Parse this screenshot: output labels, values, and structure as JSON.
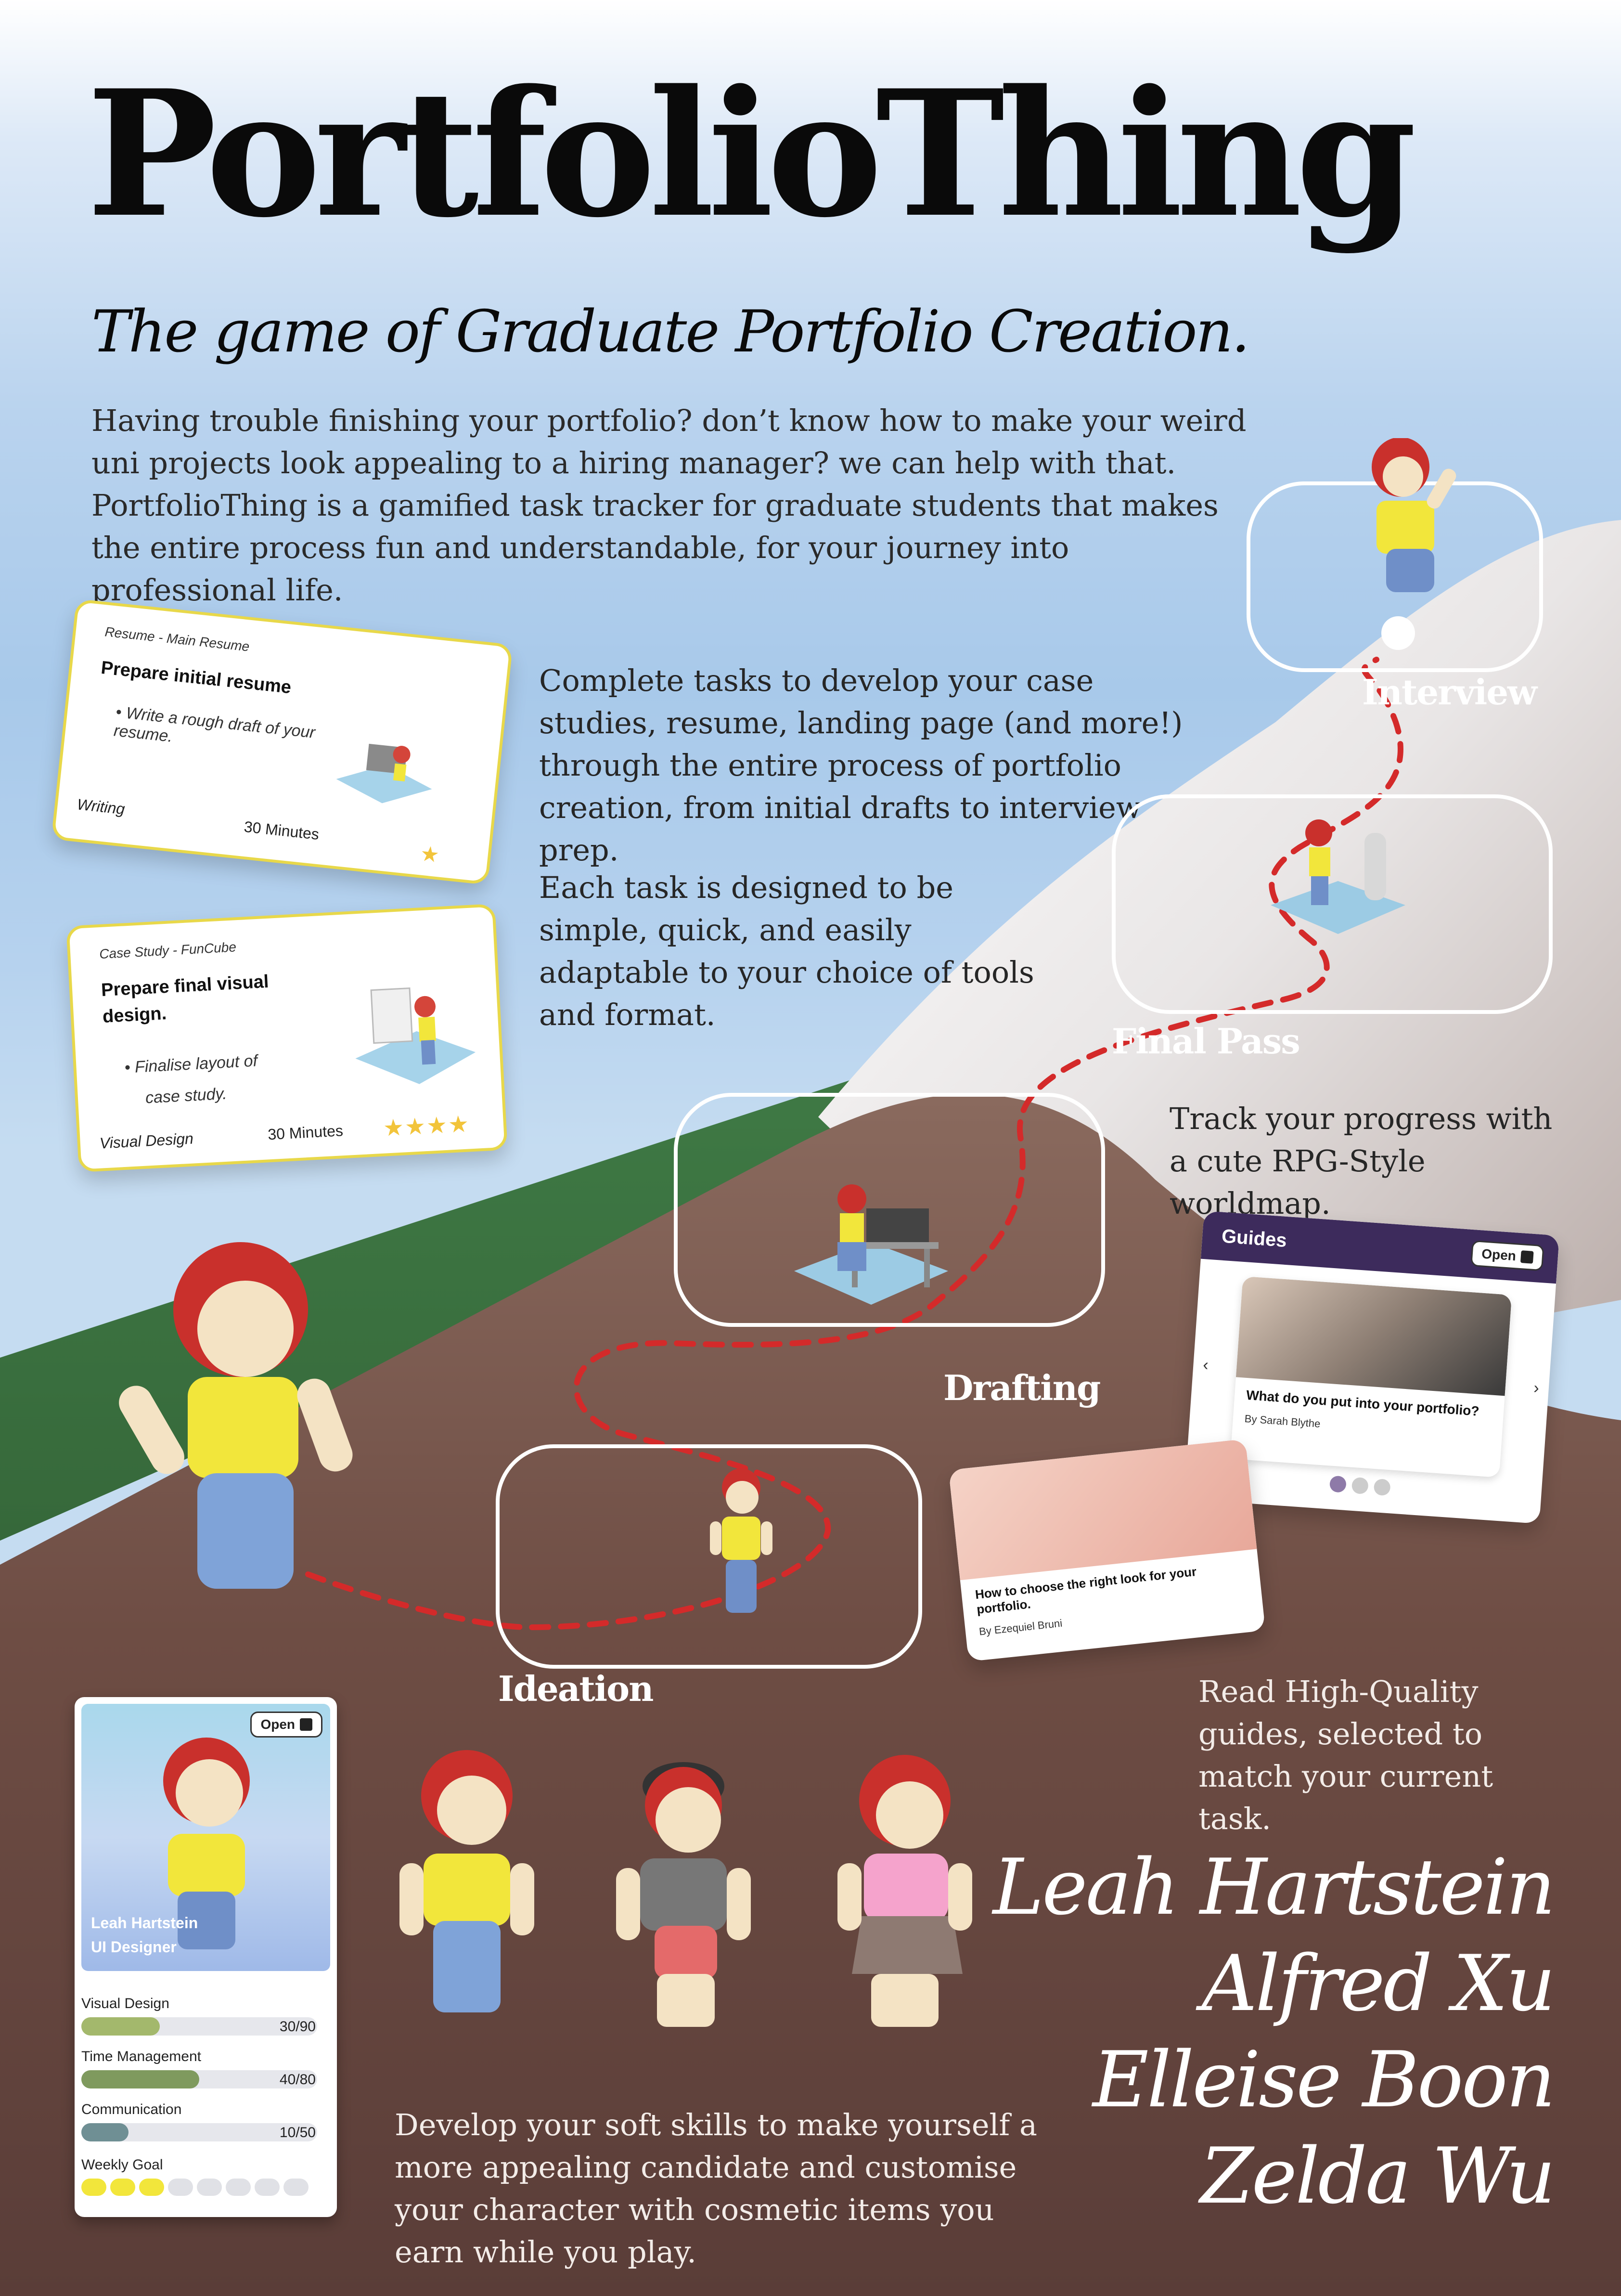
{
  "header": {
    "title": "PortfolioThing",
    "subtitle": "The game of Graduate Portfolio Creation."
  },
  "intro": "Having trouble finishing your portfolio? don’t know how to make your weird uni projects look appealing to a hiring manager? we can help with that. PortfolioThing is a gamified task tracker for graduate students that makes the entire process fun and understandable, for your journey into professional life.",
  "tasks_text": {
    "p1": "Complete tasks to develop your case studies, resume, landing page (and more!) through the entire process of portfolio creation, from initial drafts to interview prep.",
    "p2": "Each task is designed to be simple, quick, and easily adaptable to your choice of tools and format."
  },
  "task_cards": [
    {
      "category": "Resume - Main Resume",
      "title": "Prepare initial resume",
      "bullet": "Write a rough draft of your resume.",
      "skill": "Writing",
      "duration": "30 Minutes",
      "stars": 1
    },
    {
      "category": "Case Study - FunCube",
      "title_line1": "Prepare final visual",
      "title_line2": "design.",
      "bullet_line1": "Finalise layout of",
      "bullet_line2": "case study.",
      "skill": "Visual Design",
      "duration": "30 Minutes",
      "stars": 4
    }
  ],
  "map": {
    "stages": [
      "Interview",
      "Final Pass",
      "Drafting",
      "Ideation"
    ],
    "caption": "Track your progress with a cute RPG-Style worldmap."
  },
  "guides_panel": {
    "title": "Guides",
    "open_label": "Open",
    "article_title": "What do you put into your portfolio?",
    "article_author": "By Sarah Blythe",
    "prev_icon": "chevron-left-icon",
    "next_icon": "chevron-right-icon"
  },
  "guide_card": {
    "title": "How to choose the right look for your portfolio.",
    "author": "By Ezequiel Bruni"
  },
  "guides_caption": "Read High-Quality guides, selected to match your current task.",
  "profile": {
    "open_label": "Open",
    "name": "Leah Hartstein",
    "role": "UI Designer",
    "skills": [
      {
        "label": "Visual Design",
        "value": "30/90",
        "fraction": 0.333,
        "color": "#a3b86c"
      },
      {
        "label": "Time Management",
        "value": "40/80",
        "fraction": 0.5,
        "color": "#7f9a5e"
      },
      {
        "label": "Communication",
        "value": "10/50",
        "fraction": 0.2,
        "color": "#6f8f94"
      }
    ],
    "weekly_goal_label": "Weekly Goal",
    "weekly_goal_done": 3,
    "weekly_goal_total": 8
  },
  "skills_caption": "Develop your soft skills to make yourself a more appealing candidate and customise your character with cosmetic items you earn while you play.",
  "team": [
    "Leah Hartstein",
    "Alfred Xu",
    "Elleise Boon",
    "Zelda Wu"
  ],
  "colors": {
    "accent_yellow": "#f2e63b",
    "path_red": "#d42a2a",
    "guides_purple": "#3d2b5c",
    "star": "#f2c43b"
  }
}
